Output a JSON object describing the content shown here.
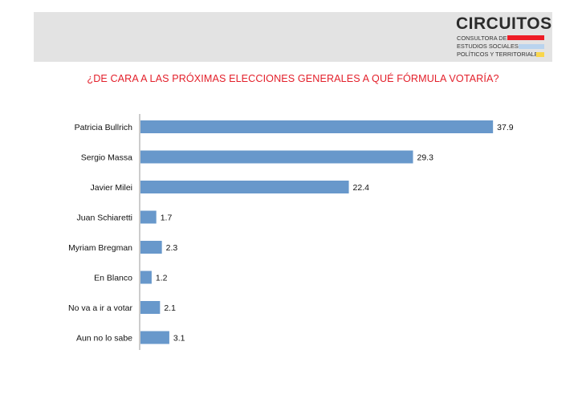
{
  "header": {
    "logo": {
      "title": "CIRCUITOS",
      "lines": [
        "CONSULTORA DE",
        "ESTUDIOS SOCIALES,",
        "POLÍTICOS Y TERRITORIALES"
      ],
      "bar_colors": [
        "#ee1c25",
        "#b9d3ee",
        "#f9d64b"
      ]
    }
  },
  "chart_data": {
    "type": "bar",
    "orientation": "horizontal",
    "title": "¿DE CARA A LAS PRÓXIMAS ELECCIONES GENERALES A QUÉ FÓRMULA VOTARÍA?",
    "categories": [
      "Patricia Bullrich",
      "Sergio Massa",
      "Javier Milei",
      "Juan Schiaretti",
      "Myriam Bregman",
      "En Blanco",
      "No va a ir a votar",
      "Aun no lo sabe"
    ],
    "values": [
      37.9,
      29.3,
      22.4,
      1.7,
      2.3,
      1.2,
      2.1,
      3.1
    ],
    "value_labels": [
      "37.9",
      "29.3",
      "22.4",
      "1.7",
      "2.3",
      "1.2",
      "2.1",
      "3.1"
    ],
    "xlim": [
      0,
      40
    ],
    "grid": false,
    "bar_color": "#6898cb",
    "title_color": "#e3202b"
  }
}
